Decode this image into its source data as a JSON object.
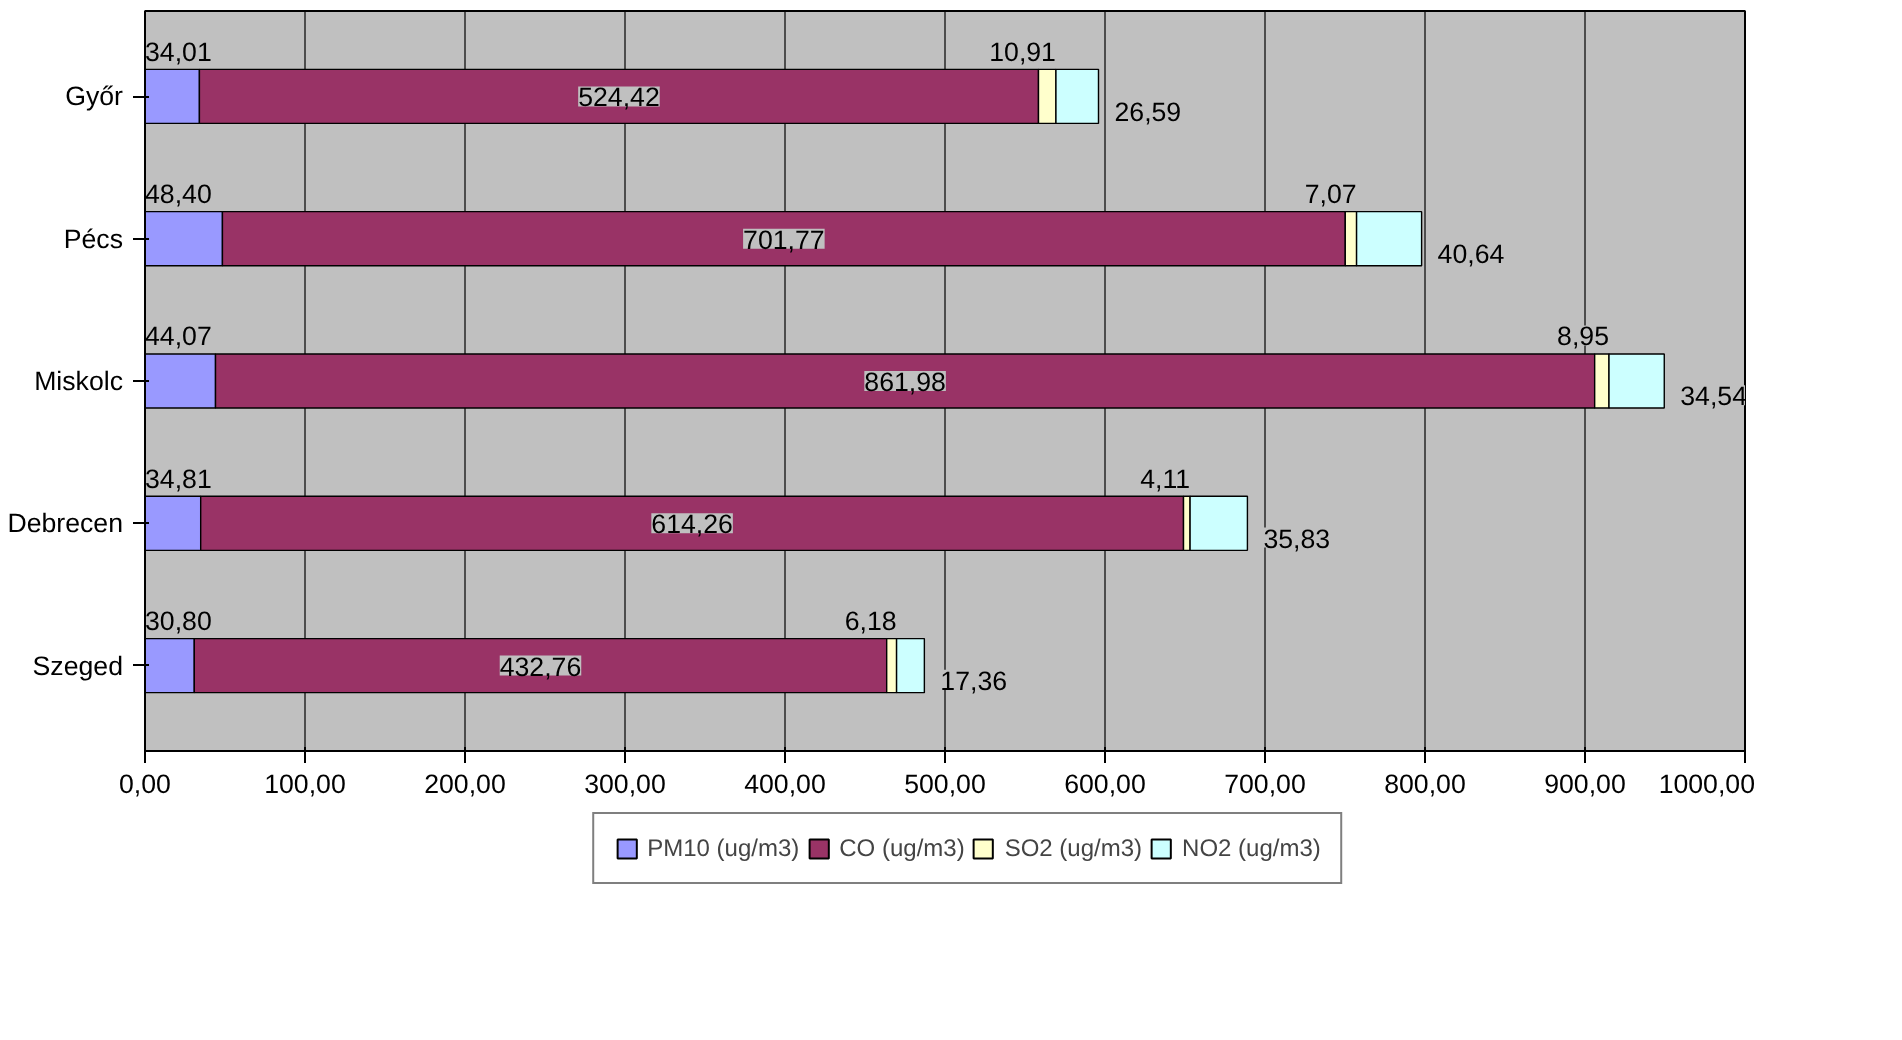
{
  "chart_data": {
    "type": "bar",
    "orientation": "horizontal",
    "stacked": true,
    "categories": [
      "Győr",
      "Pécs",
      "Miskolc",
      "Debrecen",
      "Szeged"
    ],
    "series": [
      {
        "name": "PM10 (ug/m3)",
        "color": "#9999ff",
        "values": [
          34.01,
          48.4,
          44.07,
          34.81,
          30.8
        ],
        "value_labels": [
          "34,01",
          "48,40",
          "44,07",
          "34,81",
          "30,80"
        ]
      },
      {
        "name": "CO (ug/m3)",
        "color": "#993366",
        "values": [
          524.42,
          701.77,
          861.98,
          614.26,
          432.76
        ],
        "value_labels": [
          "524,42",
          "701,77",
          "861,98",
          "614,26",
          "432,76"
        ]
      },
      {
        "name": "SO2 (ug/m3)",
        "color": "#ffffcc",
        "values": [
          10.91,
          7.07,
          8.95,
          4.11,
          6.18
        ],
        "value_labels": [
          "10,91",
          "7,07",
          "8,95",
          "4,11",
          "6,18"
        ]
      },
      {
        "name": "NO2 (ug/m3)",
        "color": "#ccffff",
        "values": [
          26.59,
          40.64,
          34.54,
          35.83,
          17.36
        ],
        "value_labels": [
          "26,59",
          "40,64",
          "34,54",
          "35,83",
          "17,36"
        ]
      }
    ],
    "xlim": [
      0,
      1000
    ],
    "xticks": [
      {
        "value": 0,
        "label": "0,00"
      },
      {
        "value": 100,
        "label": "100,00"
      },
      {
        "value": 200,
        "label": "200,00"
      },
      {
        "value": 300,
        "label": "300,00"
      },
      {
        "value": 400,
        "label": "400,00"
      },
      {
        "value": 500,
        "label": "500,00"
      },
      {
        "value": 600,
        "label": "600,00"
      },
      {
        "value": 700,
        "label": "700,00"
      },
      {
        "value": 800,
        "label": "800,00"
      },
      {
        "value": 900,
        "label": "900,00"
      },
      {
        "value": 1000,
        "label": "1000,00"
      }
    ],
    "grid": "x",
    "legend": "bottom"
  }
}
